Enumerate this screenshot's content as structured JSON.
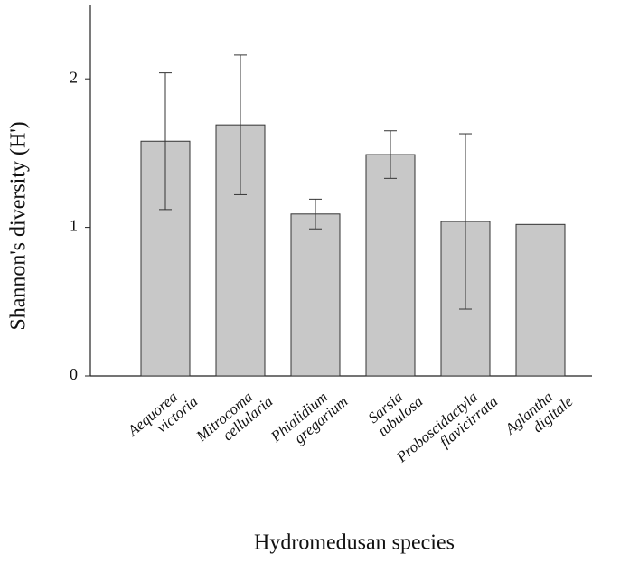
{
  "chart_data": {
    "type": "bar",
    "categories": [
      [
        "Aequorea",
        "victoria"
      ],
      [
        "Mitrocoma",
        "cellularia"
      ],
      [
        "Phialidium",
        "gregarium"
      ],
      [
        "Sarsia",
        "tubulosa"
      ],
      [
        "Proboscidactyla",
        "flavicirrata"
      ],
      [
        "Aglantha",
        "digitale"
      ]
    ],
    "values": [
      1.58,
      1.69,
      1.09,
      1.49,
      1.04,
      1.02
    ],
    "errors": [
      0.46,
      0.47,
      0.1,
      0.16,
      0.59,
      null
    ],
    "color": "#c8c8c8",
    "ylabel": "Shannon's diversity (H')",
    "xlabel": "Hydromedusan species",
    "ylim": [
      0,
      2.5
    ],
    "yticks": [
      0,
      1,
      2
    ]
  }
}
